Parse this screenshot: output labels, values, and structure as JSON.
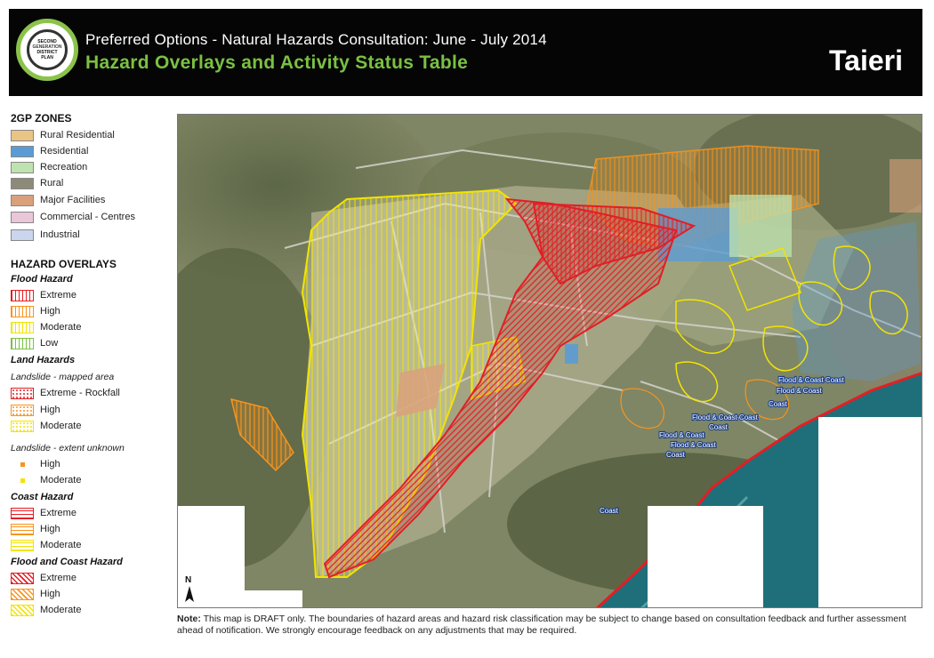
{
  "header": {
    "subtitle": "Preferred Options - Natural Hazards Consultation: June - July 2014",
    "title": "Hazard Overlays and Activity Status Table",
    "region": "Taieri",
    "logo": {
      "line1": "SECOND",
      "line2": "GENERATION",
      "line3": "DISTRICT",
      "line4": "PLAN"
    }
  },
  "colors": {
    "header_bg": "#050505",
    "title_green": "#7ac143",
    "extreme_red": "#e31e24",
    "high_orange": "#f7941d",
    "moderate_yellow": "#f2e400",
    "low_green": "#7ac143",
    "sea": "#1f6f7a"
  },
  "legend": {
    "zones_heading": "2GP ZONES",
    "zones": [
      {
        "label": "Rural Residential",
        "color": "#e9c485"
      },
      {
        "label": "Residential",
        "color": "#5b9bd5"
      },
      {
        "label": "Recreation",
        "color": "#bfe3b0"
      },
      {
        "label": "Rural",
        "color": "#8d8a78"
      },
      {
        "label": "Major Facilities",
        "color": "#d9a07c"
      },
      {
        "label": "Commercial - Centres",
        "color": "#e9c6d8"
      },
      {
        "label": "Industrial",
        "color": "#cbd6ee"
      }
    ],
    "overlays_heading": "HAZARD OVERLAYS",
    "flood": {
      "title": "Flood Hazard",
      "items": [
        {
          "label": "Extreme",
          "color": "#e31e24"
        },
        {
          "label": "High",
          "color": "#f7941d"
        },
        {
          "label": "Moderate",
          "color": "#f2e400"
        },
        {
          "label": "Low",
          "color": "#7ac143"
        }
      ]
    },
    "land": {
      "title": "Land Hazards",
      "mapped_note": "Landslide - mapped area",
      "mapped_items": [
        {
          "label": "Extreme - Rockfall",
          "color": "#e31e24"
        },
        {
          "label": "High",
          "color": "#f7941d"
        },
        {
          "label": "Moderate",
          "color": "#f2e400"
        }
      ],
      "unknown_note": "Landslide - extent unknown",
      "unknown_items": [
        {
          "label": "High",
          "color": "#f7941d"
        },
        {
          "label": "Moderate",
          "color": "#f2e400"
        }
      ]
    },
    "coast": {
      "title": "Coast Hazard",
      "items": [
        {
          "label": "Extreme",
          "color": "#e31e24"
        },
        {
          "label": "High",
          "color": "#f7941d"
        },
        {
          "label": "Moderate",
          "color": "#f2e400"
        }
      ]
    },
    "flood_coast": {
      "title": "Flood and Coast Hazard",
      "items": [
        {
          "label": "Extreme",
          "color": "#e31e24"
        },
        {
          "label": "High",
          "color": "#f7941d"
        },
        {
          "label": "Moderate",
          "color": "#f2e400"
        }
      ]
    }
  },
  "map": {
    "north_label": "N",
    "labels": [
      "Flood & Coast Coast",
      "Flood & Coast",
      "Coast",
      "Flood & Coast Coast",
      "Coast",
      "Flood & Coast",
      "Flood & Coast",
      "Coast",
      "Coast"
    ]
  },
  "note": {
    "bold": "Note:",
    "text": " This map is DRAFT only.  The boundaries of hazard areas and hazard risk classification may be subject to change based on consultation feedback and further assessment ahead of notification. We strongly encourage feedback on any adjustments that may be required."
  }
}
